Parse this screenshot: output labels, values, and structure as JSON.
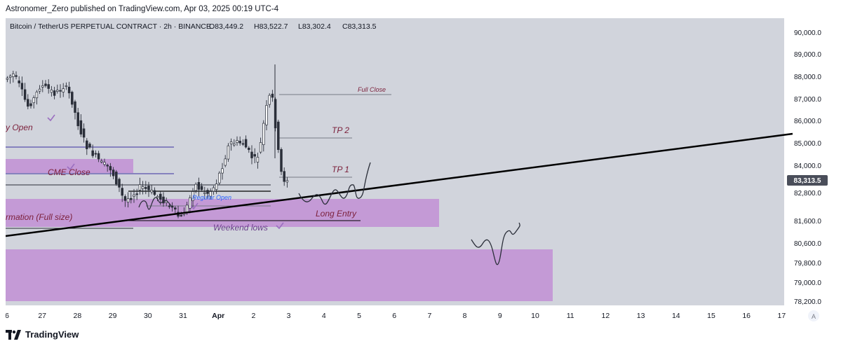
{
  "header": {
    "publish_line": "Astronomer_Zero published on TradingView.com, Apr 03, 2025 00:19 UTC-4"
  },
  "chart": {
    "title": "Bitcoin / TetherUS PERPETUAL CONTRACT · 2h · BINANCE",
    "ohlc": {
      "open": "O83,449.2",
      "high": "H83,522.7",
      "low": "L83,302.4",
      "close": "C83,313.5"
    },
    "price_ticks": [
      "90,000.0",
      "89,000.0",
      "88,000.0",
      "87,000.0",
      "86,000.0",
      "85,000.0",
      "84,000.0",
      "82,800.0",
      "81,600.0",
      "80,600.0",
      "79,800.0",
      "79,000.0",
      "78,200.0"
    ],
    "current_price_label": "83,313.5",
    "x_ticks": [
      "6",
      "27",
      "28",
      "29",
      "30",
      "31",
      "Apr",
      "2",
      "3",
      "4",
      "5",
      "6",
      "7",
      "8",
      "9",
      "10",
      "11",
      "12",
      "13",
      "14",
      "15",
      "16",
      "17"
    ],
    "axis_mode": "A",
    "annotations": {
      "full_close": "Full Close",
      "tp2": "TP 2",
      "tp1": "TP 1",
      "long_entry": "Long Entry",
      "weekend_lows": "Weekend lows",
      "regular_open": "Regular Open",
      "cme_close": "CME Close",
      "y_open": "y Open",
      "formation": "rmation (Full size)"
    },
    "colors": {
      "background": "#d1d4dc",
      "zone_fill": "#c49ad6",
      "candle": "#2a2e39",
      "trendline": "#000000",
      "annotation_text": "#7b1f3a",
      "zone_label": "#6a3d8a",
      "current_price_bg": "#4a4e5a"
    }
  },
  "chart_data": {
    "type": "candlestick",
    "title": "Bitcoin / TetherUS PERPETUAL CONTRACT · 2h · BINANCE",
    "ylim": [
      78000,
      90500
    ],
    "x_labels": [
      "6",
      "27",
      "28",
      "29",
      "30",
      "31",
      "Apr",
      "2",
      "3",
      "4",
      "5",
      "6",
      "7",
      "8",
      "9",
      "10",
      "11",
      "12",
      "13",
      "14",
      "15",
      "16",
      "17"
    ],
    "levels": [
      {
        "name": "Full Close",
        "price": 87200
      },
      {
        "name": "TP 2",
        "price": 85200
      },
      {
        "name": "TP 1",
        "price": 83600
      },
      {
        "name": "Long Entry",
        "price": 81700
      },
      {
        "name": "Weekend lows",
        "price": 81700
      }
    ],
    "zones": [
      {
        "label": "CME Close",
        "from": 83500,
        "to": 84200
      },
      {
        "label": "rmation (Full size)",
        "from": 81300,
        "to": 82500
      },
      {
        "label": "",
        "from": 78200,
        "to": 80400
      }
    ],
    "last_close": 83313.5,
    "price_path": [
      [
        "27",
        87600
      ],
      [
        "27",
        86900
      ],
      [
        "28",
        87500
      ],
      [
        "28",
        85500
      ],
      [
        "29",
        84000
      ],
      [
        "29",
        82300
      ],
      [
        "30",
        82800
      ],
      [
        "31",
        82000
      ],
      [
        "Apr",
        82600
      ],
      [
        "Apr",
        84800
      ],
      [
        "2",
        85200
      ],
      [
        "2",
        87300
      ],
      [
        "2",
        88400
      ],
      [
        "3",
        83400
      ],
      [
        "3",
        83313.5
      ]
    ]
  }
}
